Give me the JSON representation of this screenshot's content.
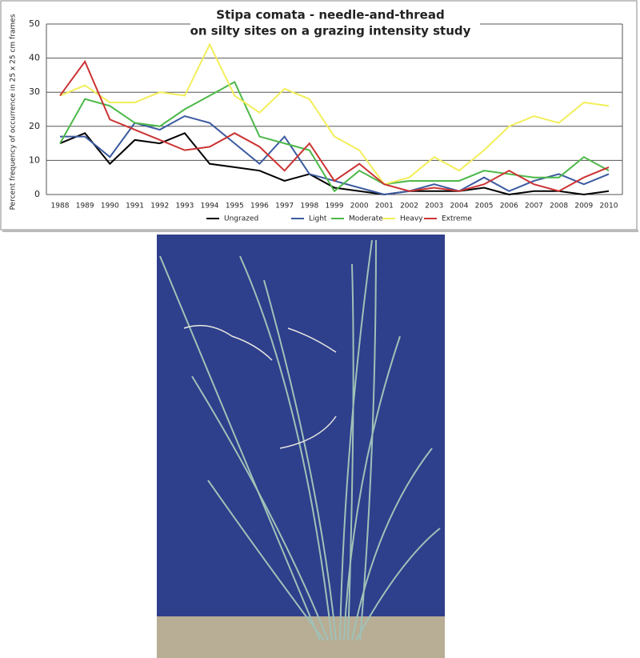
{
  "chart_data": {
    "type": "line",
    "title": "Stipa comata  -  needle-and-thread",
    "subtitle": "on silty sites on a grazing intensity study",
    "y_label": "Percent frequency of occurrence in 25 x 25 cm frames",
    "categories": [
      "1988",
      "1989",
      "1990",
      "1991",
      "1992",
      "1993",
      "1994",
      "1995",
      "1996",
      "1997",
      "1998",
      "1999",
      "2000",
      "2001",
      "2002",
      "2003",
      "2004",
      "2005",
      "2006",
      "2007",
      "2008",
      "2009",
      "2010"
    ],
    "series": [
      {
        "name": "Ungrazed",
        "color": "#000000",
        "values": [
          15,
          18,
          9,
          16,
          15,
          18,
          9,
          8,
          7,
          4,
          6,
          2,
          1,
          0,
          1,
          1,
          1,
          2,
          0,
          1,
          1,
          0,
          1
        ]
      },
      {
        "name": "Light",
        "color": "#3b5aa0",
        "values": [
          17,
          17,
          11,
          21,
          19,
          23,
          21,
          15,
          9,
          17,
          6,
          4,
          2,
          0,
          1,
          3,
          1,
          5,
          1,
          4,
          6,
          3,
          6
        ]
      },
      {
        "name": "Moderate",
        "color": "#4cb848",
        "values": [
          15,
          28,
          26,
          21,
          20,
          25,
          29,
          33,
          17,
          15,
          13,
          1,
          7,
          3,
          4,
          4,
          4,
          7,
          6,
          5,
          5,
          11,
          7
        ]
      },
      {
        "name": "Heavy",
        "color": "#f2ee5a",
        "values": [
          29,
          32,
          27,
          27,
          30,
          29,
          44,
          29,
          24,
          31,
          28,
          17,
          13,
          3,
          5,
          11,
          7,
          13,
          20,
          23,
          21,
          27,
          26
        ]
      },
      {
        "name": "Extreme",
        "color": "#cc3333",
        "values": [
          29,
          39,
          22,
          19,
          16,
          13,
          14,
          18,
          14,
          7,
          15,
          4,
          9,
          3,
          1,
          2,
          1,
          3,
          7,
          3,
          1,
          5,
          8
        ]
      }
    ],
    "ylim": [
      0,
      50
    ],
    "yticks": [
      0,
      10,
      20,
      30,
      40,
      50
    ],
    "grid": true
  }
}
